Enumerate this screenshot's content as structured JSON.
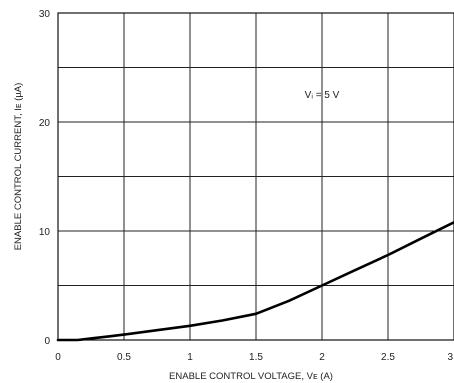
{
  "chart_data": {
    "type": "line",
    "title": "",
    "xlabel": "ENABLE CONTROL VOLTAGE, Vᴇ (A)",
    "ylabel": "ENABLE CONTROL CURRENT, Iᴇ (µA)",
    "xlim": [
      0,
      3
    ],
    "ylim": [
      0,
      30
    ],
    "x_ticks": [
      "0",
      "0.5",
      "1",
      "1.5",
      "2",
      "2.5",
      "3"
    ],
    "y_ticks": [
      "0",
      "10",
      "20",
      "30"
    ],
    "grid": true,
    "annotation": "Vᵢ = 5 V",
    "series": [
      {
        "x": [
          0,
          0.15,
          0.25,
          0.4,
          0.5,
          0.75,
          1.0,
          1.25,
          1.5,
          1.75,
          2.0,
          2.25,
          2.5,
          2.75,
          3.0
        ],
        "y": [
          0,
          0,
          0.15,
          0.35,
          0.5,
          0.9,
          1.3,
          1.8,
          2.4,
          3.6,
          5.0,
          6.4,
          7.8,
          9.3,
          10.8
        ]
      }
    ]
  }
}
